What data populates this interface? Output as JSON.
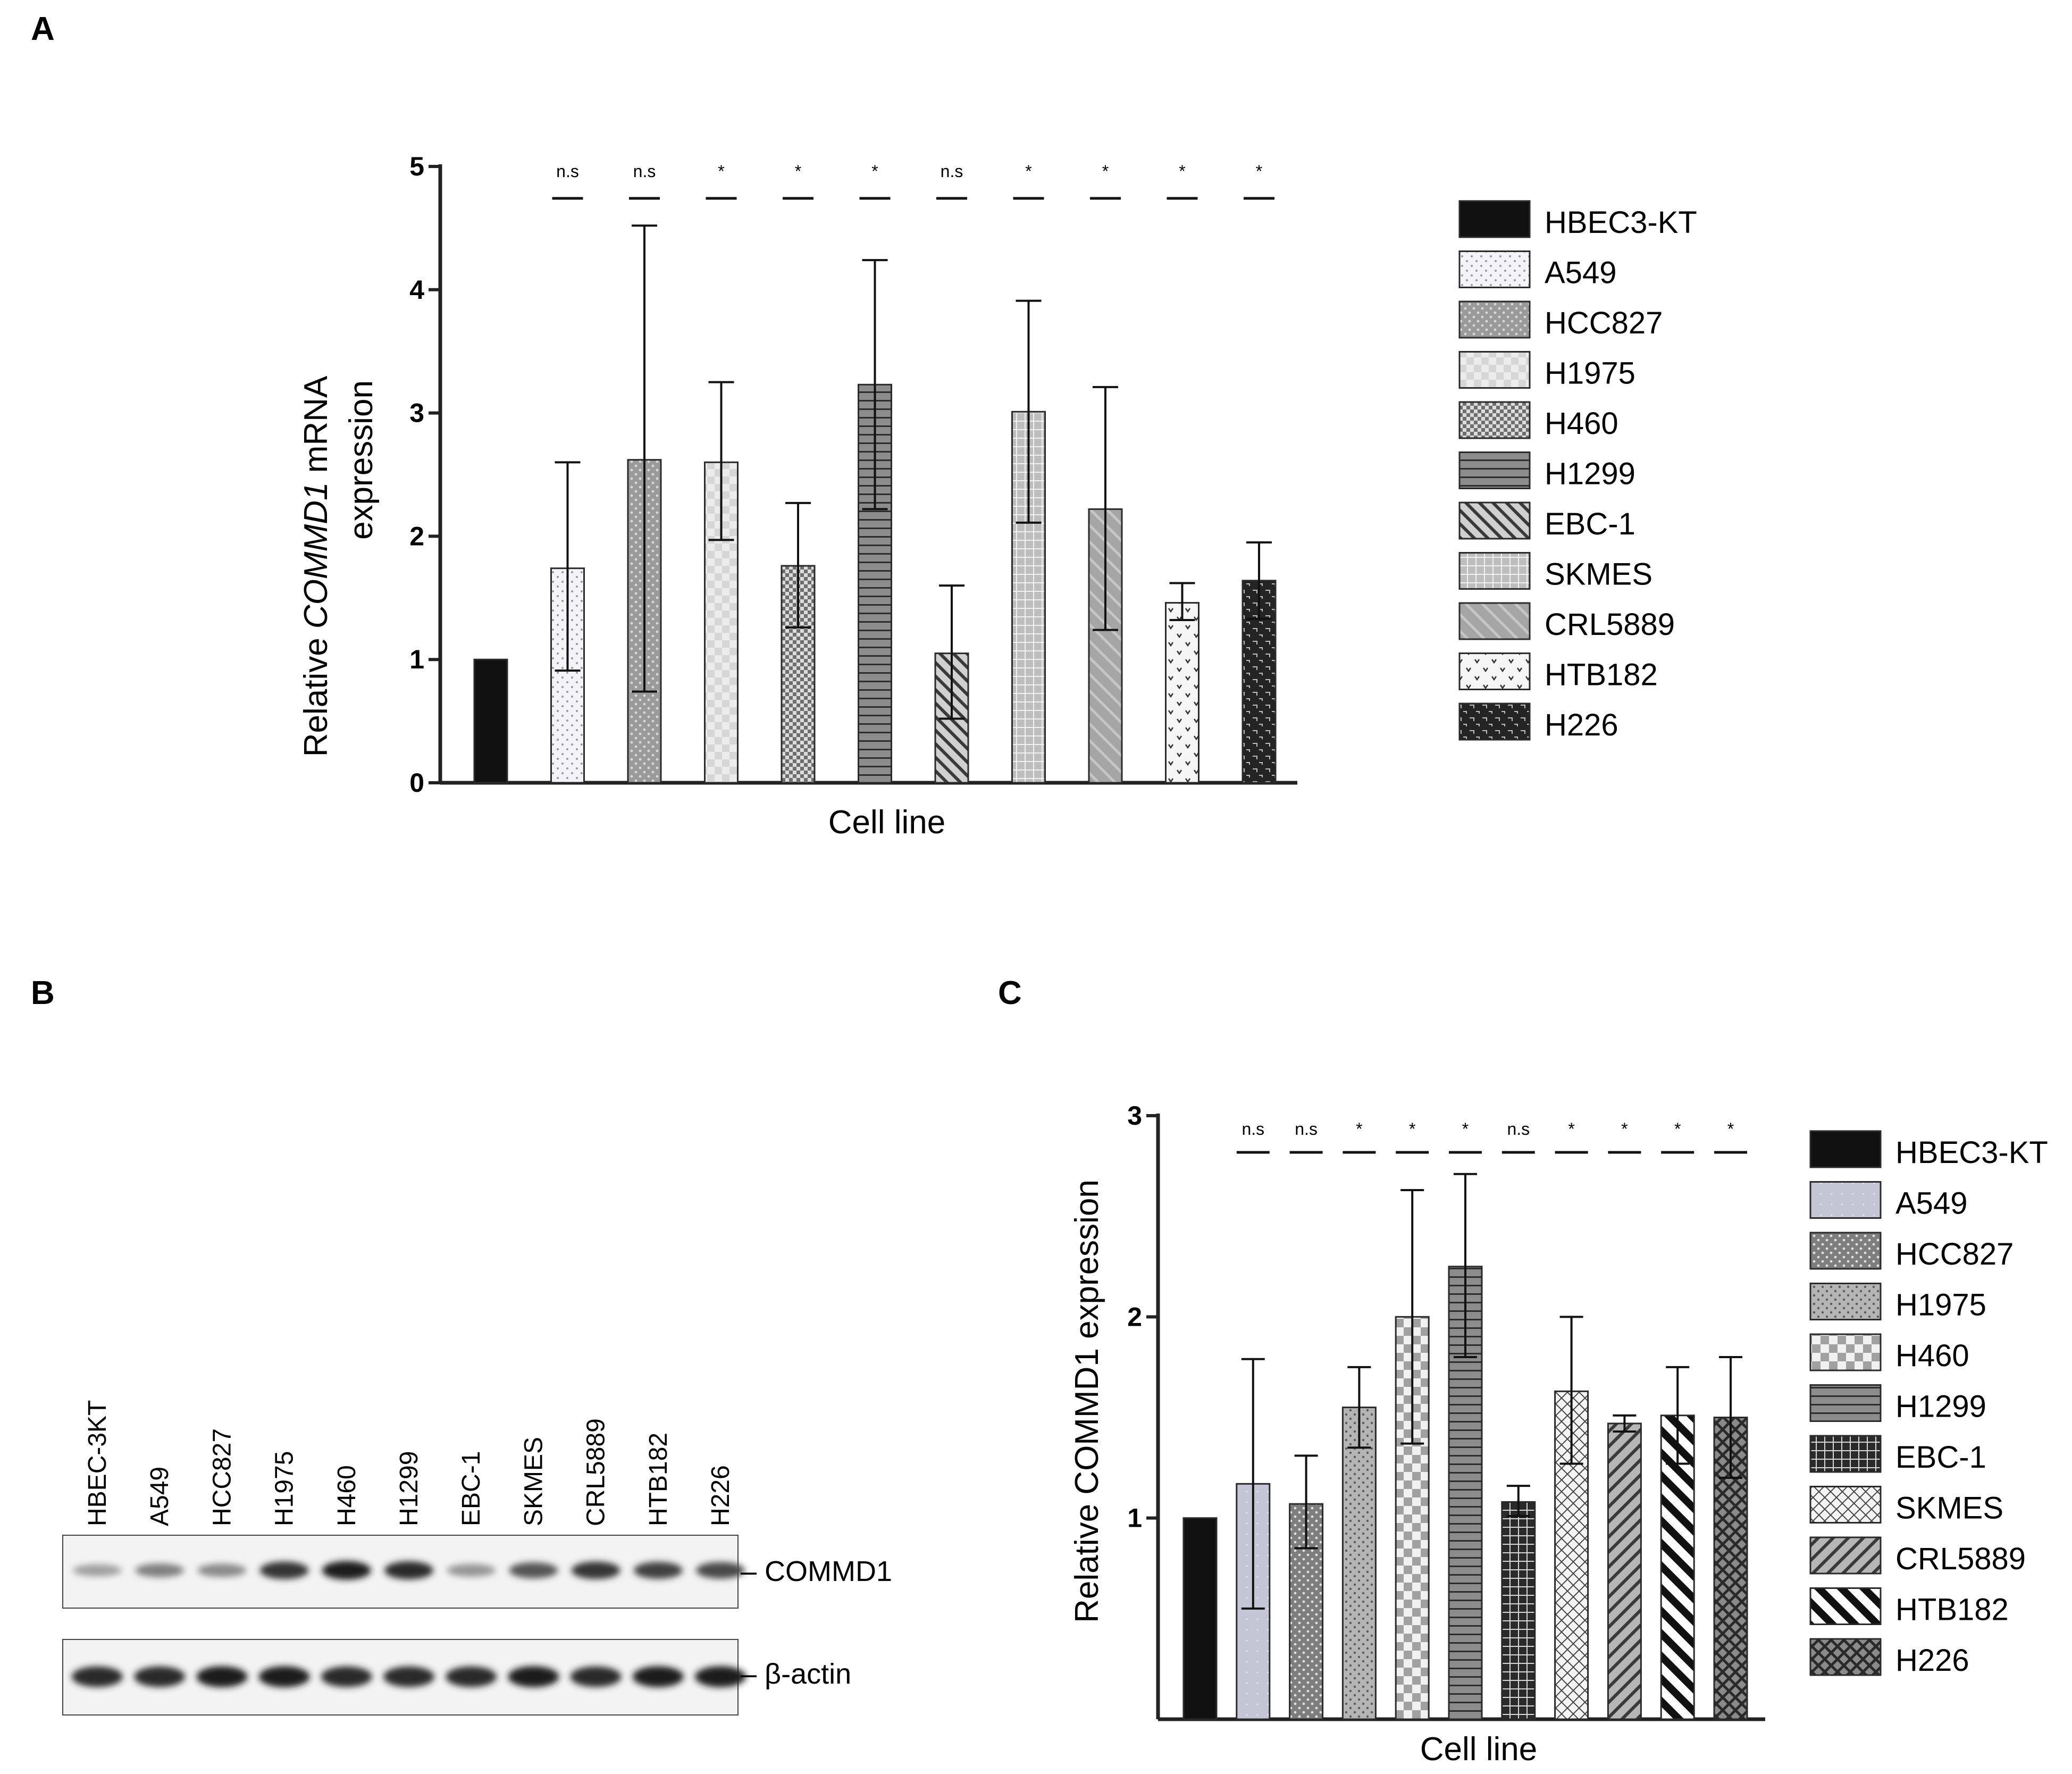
{
  "panels": {
    "a": "A",
    "b": "B",
    "c": "C"
  },
  "chart_data": [
    {
      "id": "A",
      "type": "bar",
      "title": "",
      "ylabel_prefix": "Relative ",
      "ylabel_gene": "COMMD1",
      "ylabel_suffix": " mRNA",
      "ylabel_line2": "expression",
      "xlabel": "Cell line",
      "ylim": [
        0,
        5
      ],
      "yticks": [
        "0",
        "1",
        "2",
        "3",
        "4",
        "5"
      ],
      "categories": [
        "HBEC3-KT",
        "A549",
        "HCC827",
        "H1975",
        "H460",
        "H1299",
        "EBC-1",
        "SKMES",
        "CRL5889",
        "HTB182",
        "H226"
      ],
      "values": [
        1.0,
        1.74,
        2.62,
        2.6,
        1.76,
        3.23,
        1.05,
        3.01,
        2.22,
        1.46,
        1.64
      ],
      "error_low": [
        null,
        0.91,
        0.74,
        1.97,
        1.26,
        2.22,
        0.52,
        2.11,
        1.24,
        1.32,
        1.33
      ],
      "error_high": [
        null,
        2.6,
        4.52,
        3.25,
        2.27,
        4.24,
        1.6,
        3.91,
        3.21,
        1.62,
        1.95
      ],
      "significance": [
        "",
        "n.s",
        "n.s",
        "*",
        "*",
        "*",
        "n.s",
        "*",
        "*",
        "*",
        "*"
      ]
    },
    {
      "id": "C",
      "type": "bar",
      "title": "",
      "ylabel": "Relative COMMD1 expression",
      "xlabel": "Cell line",
      "ylim": [
        0,
        3
      ],
      "yticks": [
        "1",
        "2",
        "3"
      ],
      "categories": [
        "HBEC3-KT",
        "A549",
        "HCC827",
        "H1975",
        "H460",
        "H1299",
        "EBC-1",
        "SKMES",
        "CRL5889",
        "HTB182",
        "H226"
      ],
      "values": [
        1.0,
        1.17,
        1.07,
        1.55,
        2.0,
        2.25,
        1.08,
        1.63,
        1.47,
        1.51,
        1.5
      ],
      "error_low": [
        null,
        0.55,
        0.85,
        1.35,
        1.37,
        1.8,
        1.01,
        1.27,
        1.43,
        1.27,
        1.2
      ],
      "error_high": [
        null,
        1.79,
        1.31,
        1.75,
        2.63,
        2.71,
        1.16,
        2.0,
        1.51,
        1.75,
        1.8
      ],
      "significance": [
        "",
        "n.s",
        "n.s",
        "*",
        "*",
        "*",
        "n.s",
        "*",
        "*",
        "*",
        "*"
      ]
    }
  ],
  "blot": {
    "lanes": [
      "HBEC-3KT",
      "A549",
      "HCC827",
      "H1975",
      "H460",
      "H1299",
      "EBC-1",
      "SKMES",
      "CRL5889",
      "HTB182",
      "H226"
    ],
    "commd1_label": "– COMMD1",
    "actin_label": "– β-actin",
    "commd1_intensity": [
      0.35,
      0.5,
      0.45,
      0.85,
      0.95,
      0.9,
      0.4,
      0.7,
      0.85,
      0.8,
      0.75
    ],
    "actin_intensity": [
      0.9,
      0.9,
      0.95,
      0.95,
      0.9,
      0.9,
      0.9,
      0.95,
      0.9,
      0.95,
      0.95
    ]
  },
  "colors": {
    "dark": "#111111",
    "axis": "#222222",
    "bar_edge": "#2a2a2a"
  }
}
